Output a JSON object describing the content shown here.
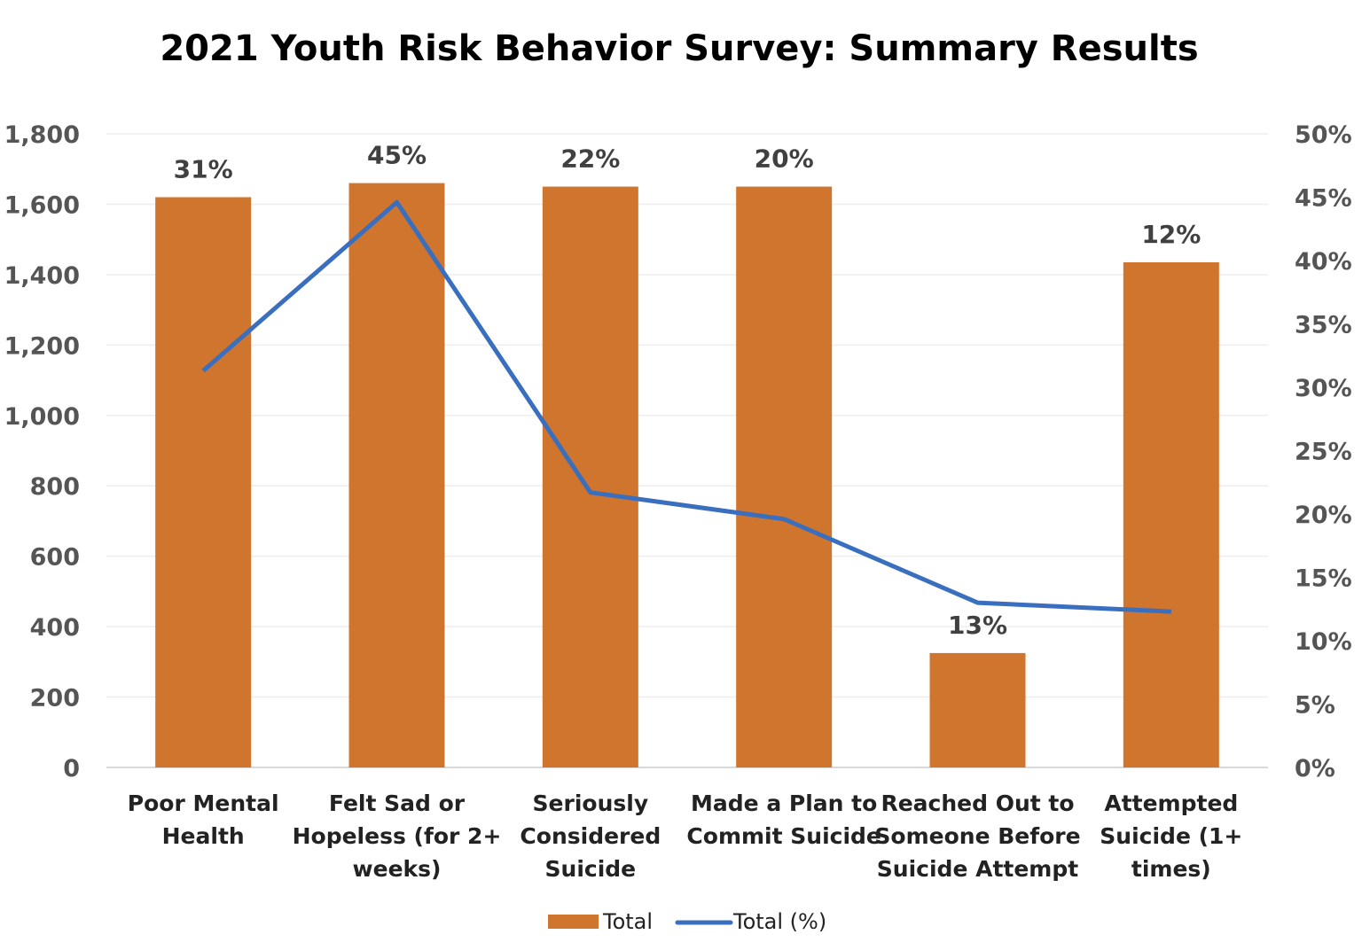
{
  "chart_data": {
    "type": "bar",
    "title": "2021 Youth Risk Behavior Survey: Summary Results",
    "categories": [
      [
        "Poor Mental",
        "Health"
      ],
      [
        "Felt Sad or",
        "Hopeless (for 2+",
        "weeks)"
      ],
      [
        "Seriously",
        "Considered",
        "Suicide"
      ],
      [
        "Made a Plan to",
        "Commit Suicide"
      ],
      [
        "Reached Out to",
        "Someone Before",
        "Suicide Attempt"
      ],
      [
        "Attempted",
        "Suicide (1+",
        "times)"
      ]
    ],
    "series": [
      {
        "name": "Total",
        "type": "bar",
        "axis": "left",
        "color": "#D0752E",
        "values": [
          1620,
          1660,
          1650,
          1650,
          325,
          1435
        ]
      },
      {
        "name": "Total (%)",
        "type": "line",
        "axis": "right",
        "color": "#3A6FBF",
        "values": [
          31.3,
          44.6,
          21.7,
          19.6,
          13.0,
          12.3
        ]
      }
    ],
    "data_labels": [
      "31%",
      "45%",
      "22%",
      "20%",
      "13%",
      "12%"
    ],
    "y_left": {
      "lim": [
        0,
        1800
      ],
      "ticks": [
        "0",
        "200",
        "400",
        "600",
        "800",
        "1,000",
        "1,200",
        "1,400",
        "1,600",
        "1,800"
      ]
    },
    "y_right": {
      "lim": [
        0,
        50
      ],
      "ticks": [
        "0%",
        "5%",
        "10%",
        "15%",
        "20%",
        "25%",
        "30%",
        "35%",
        "40%",
        "45%",
        "50%"
      ]
    },
    "grid": true,
    "legend": "bottom"
  }
}
